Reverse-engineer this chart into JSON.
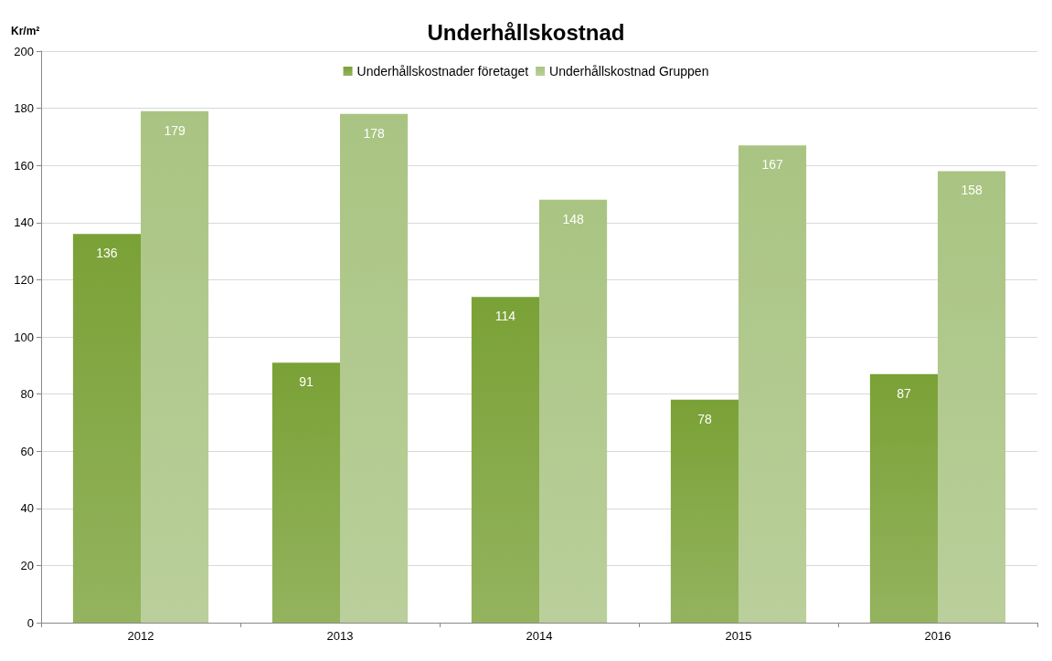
{
  "chart_data": {
    "type": "bar",
    "title": "Underhållskostnad",
    "ylabel": "Kr/m²",
    "categories": [
      "2012",
      "2013",
      "2014",
      "2015",
      "2016"
    ],
    "series": [
      {
        "name": "Underhållskostnader företaget",
        "color": "#7aa136",
        "values": [
          136,
          91,
          114,
          78,
          87
        ]
      },
      {
        "name": "Underhållskostnad Gruppen",
        "color": "#a9c482",
        "values": [
          179,
          178,
          148,
          167,
          158
        ]
      }
    ],
    "ylim": [
      0,
      200
    ],
    "yticks": [
      0,
      20,
      40,
      60,
      80,
      100,
      120,
      140,
      160,
      180,
      200
    ],
    "grid": "y",
    "legend": "top",
    "data_labels": true
  }
}
